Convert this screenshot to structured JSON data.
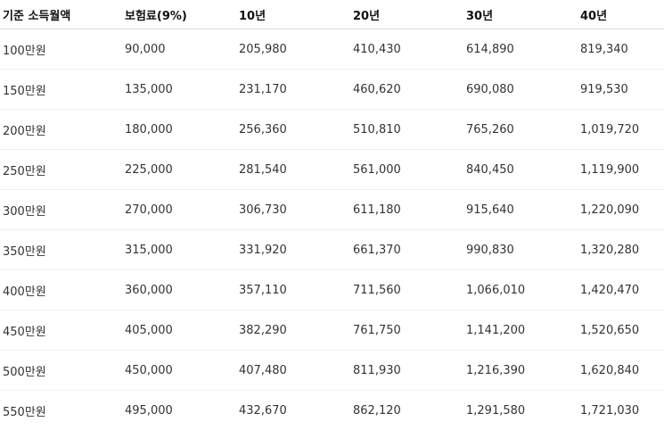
{
  "table": {
    "headers": [
      "기준 소득월액",
      "보험료(9%)",
      "10년",
      "20년",
      "30년",
      "40년"
    ],
    "rows": [
      [
        "100만원",
        "90,000",
        "205,980",
        "410,430",
        "614,890",
        "819,340"
      ],
      [
        "150만원",
        "135,000",
        "231,170",
        "460,620",
        "690,080",
        "919,530"
      ],
      [
        "200만원",
        "180,000",
        "256,360",
        "510,810",
        "765,260",
        "1,019,720"
      ],
      [
        "250만원",
        "225,000",
        "281,540",
        "561,000",
        "840,450",
        "1,119,900"
      ],
      [
        "300만원",
        "270,000",
        "306,730",
        "611,180",
        "915,640",
        "1,220,090"
      ],
      [
        "350만원",
        "315,000",
        "331,920",
        "661,370",
        "990,830",
        "1,320,280"
      ],
      [
        "400만원",
        "360,000",
        "357,110",
        "711,560",
        "1,066,010",
        "1,420,470"
      ],
      [
        "450만원",
        "405,000",
        "382,290",
        "761,750",
        "1,141,200",
        "1,520,650"
      ],
      [
        "500만원",
        "450,000",
        "407,480",
        "811,930",
        "1,216,390",
        "1,620,840"
      ],
      [
        "550만원",
        "495,000",
        "432,670",
        "862,120",
        "1,291,580",
        "1,721,030"
      ]
    ]
  }
}
